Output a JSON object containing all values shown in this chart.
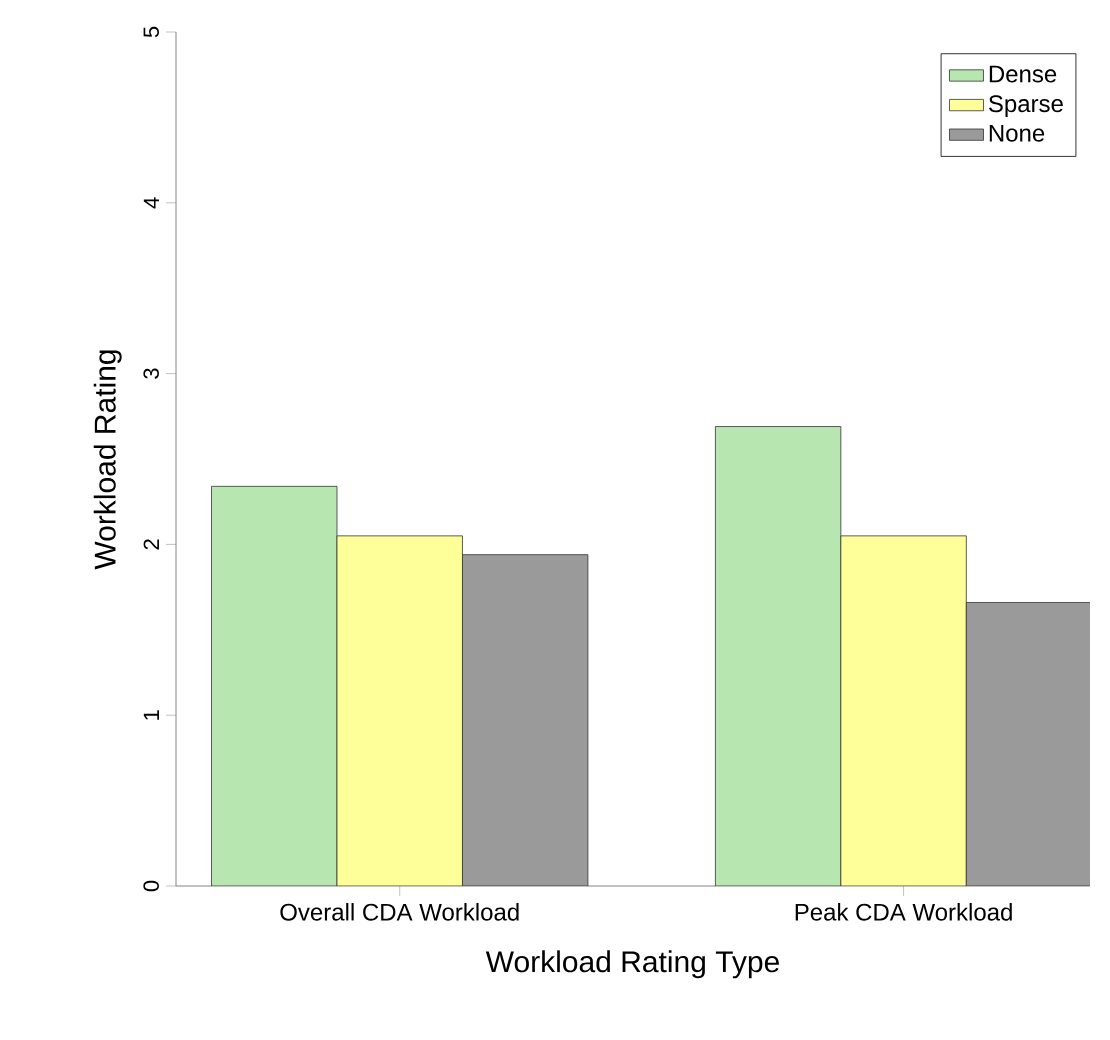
{
  "chart_data": {
    "type": "bar",
    "xlabel": "Workload Rating Type",
    "ylabel": "Workload Rating",
    "categories": [
      "Overall CDA Workload",
      "Peak CDA Workload"
    ],
    "series": [
      {
        "name": "Dense",
        "color": "#b8e6b0",
        "values": [
          2.34,
          2.69
        ]
      },
      {
        "name": "Sparse",
        "color": "#ffff99",
        "values": [
          2.05,
          2.05
        ]
      },
      {
        "name": "None",
        "color": "#9a9a9a",
        "values": [
          1.94,
          1.66
        ]
      }
    ],
    "ylim": [
      0,
      5
    ],
    "yticks": [
      0,
      1,
      2,
      3,
      4,
      5
    ],
    "legend": "top right"
  }
}
